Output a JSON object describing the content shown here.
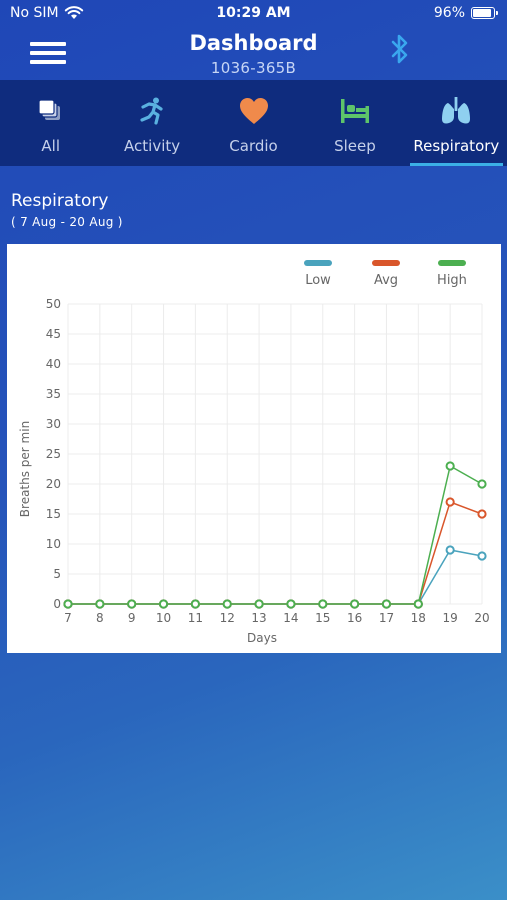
{
  "status_bar": {
    "carrier": "No SIM",
    "time": "10:29 AM",
    "battery": "96%"
  },
  "header": {
    "title": "Dashboard",
    "subtitle": "1036-365B"
  },
  "tabs": [
    {
      "label": "All",
      "icon": "layers-icon",
      "active": false
    },
    {
      "label": "Activity",
      "icon": "running-person-icon",
      "active": false
    },
    {
      "label": "Cardio",
      "icon": "heart-icon",
      "active": false
    },
    {
      "label": "Sleep",
      "icon": "bed-icon",
      "active": false
    },
    {
      "label": "Respiratory",
      "icon": "lungs-icon",
      "active": true
    }
  ],
  "section": {
    "title": "Respiratory",
    "range": "( 7 Aug - 20 Aug )"
  },
  "colors": {
    "low": "#4aa3bd",
    "avg": "#d9562b",
    "high": "#4caf50",
    "cardio_icon": "#f08a4b",
    "sleep_icon": "#5ec46a",
    "respiratory_icon": "#8fd0f0",
    "activity_icon": "#5ab1e0",
    "tab_bar": "#0f2c7e"
  },
  "chart_data": {
    "type": "line",
    "xlabel": "Days",
    "ylabel": "Breaths per min",
    "x": [
      7,
      8,
      9,
      10,
      11,
      12,
      13,
      14,
      15,
      16,
      17,
      18,
      19,
      20
    ],
    "ylim": [
      0,
      50
    ],
    "yticks": [
      0,
      5,
      10,
      15,
      20,
      25,
      30,
      35,
      40,
      45,
      50
    ],
    "grid": true,
    "legend_position": "top-right",
    "series": [
      {
        "name": "Low",
        "values": [
          0,
          0,
          0,
          0,
          0,
          0,
          0,
          0,
          0,
          0,
          0,
          0,
          9,
          8
        ]
      },
      {
        "name": "Avg",
        "values": [
          0,
          0,
          0,
          0,
          0,
          0,
          0,
          0,
          0,
          0,
          0,
          0,
          17,
          15
        ]
      },
      {
        "name": "High",
        "values": [
          0,
          0,
          0,
          0,
          0,
          0,
          0,
          0,
          0,
          0,
          0,
          0,
          23,
          20
        ]
      }
    ]
  }
}
